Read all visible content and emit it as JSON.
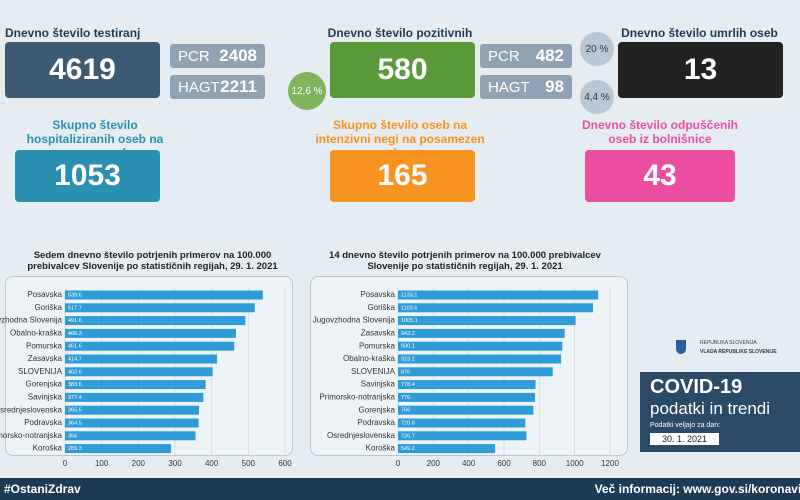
{
  "cards": {
    "tests": {
      "label": "Dnevno število testiranj",
      "value": 4619,
      "pcr_label": "PCR",
      "pcr": 2408,
      "hagt_label": "HAGT",
      "hagt": 2211
    },
    "positive": {
      "label": "Dnevno število pozitivnih",
      "value": 580,
      "share": "12,6 %",
      "pcr_label": "PCR",
      "pcr": 482,
      "pcr_share": "20 %",
      "hagt_label": "HAGT",
      "hagt": 98,
      "hagt_share": "4,4 %"
    },
    "deaths": {
      "label": "Dnevno število umrlih oseb",
      "value": 13
    },
    "hospital": {
      "label": "Skupno število hospitaliziranih oseb na posamezen dan",
      "value": 1053
    },
    "icu": {
      "label": "Skupno število oseb na intenzivni negi na posamezen dan",
      "value": 165
    },
    "discharged": {
      "label": "Dnevno število odpuščenih oseb iz bolnišnice",
      "value": 43
    }
  },
  "branding": {
    "republic": "REPUBLIKA SLOVENIJA",
    "government": "VLADA REPUBLIKE SLOVENIJE",
    "headline": "COVID-19",
    "subhead": "podatki in trendi",
    "valid_label": "Podatki veljajo za dan:",
    "valid_date": "30. 1. 2021"
  },
  "footer": {
    "hashtag": "#OstaniZdrav",
    "info": "Več informacij: www.gov.si/koronavirus"
  },
  "chart_data": [
    {
      "type": "barh",
      "title": "Sedem dnevno število potrjenih primerov na 100.000 prebivalcev Slovenije po statističnih regijah, 29. 1. 2021",
      "categories": [
        "Posavska",
        "Goriška",
        "Jugovzhodna Slovenija",
        "Obalno-kraška",
        "Pomurska",
        "Zasavska",
        "SLOVENIJA",
        "Gorenjska",
        "Savinjska",
        "Osrednjeslovenska",
        "Podravska",
        "Primorsko-notranjska",
        "Koroška"
      ],
      "values": [
        539.6,
        517.7,
        491.6,
        466.3,
        461.6,
        414.7,
        402.6,
        383.6,
        377.4,
        365.5,
        364.5,
        356,
        289.3
      ],
      "color": "#2f9bd7",
      "xlim": [
        0,
        600
      ],
      "xticks": [
        0,
        100,
        200,
        300,
        400,
        500,
        600
      ],
      "grid": true
    },
    {
      "type": "barh",
      "title": "14 dnevno število potrjenih primerov na 100.000 prebivalcev Slovenije po statističnih regijah, 29. 1. 2021",
      "categories": [
        "Posavska",
        "Goriška",
        "Jugovzhodna Slovenija",
        "Zasavska",
        "Pomurska",
        "Obalno-kraška",
        "SLOVENIJA",
        "Savinjska",
        "Primorsko-notranjska",
        "Gorenjska",
        "Podravska",
        "Osrednjeslovenska",
        "Koroška"
      ],
      "values": [
        1133.1,
        1103.6,
        1005.1,
        943.2,
        930.1,
        923.2,
        876,
        778.4,
        776,
        766,
        720.6,
        726.7,
        549.2
      ],
      "color": "#2f9bd7",
      "xlim": [
        0,
        1200
      ],
      "xticks": [
        0,
        200,
        400,
        600,
        800,
        1000,
        1200
      ],
      "grid": true
    }
  ]
}
